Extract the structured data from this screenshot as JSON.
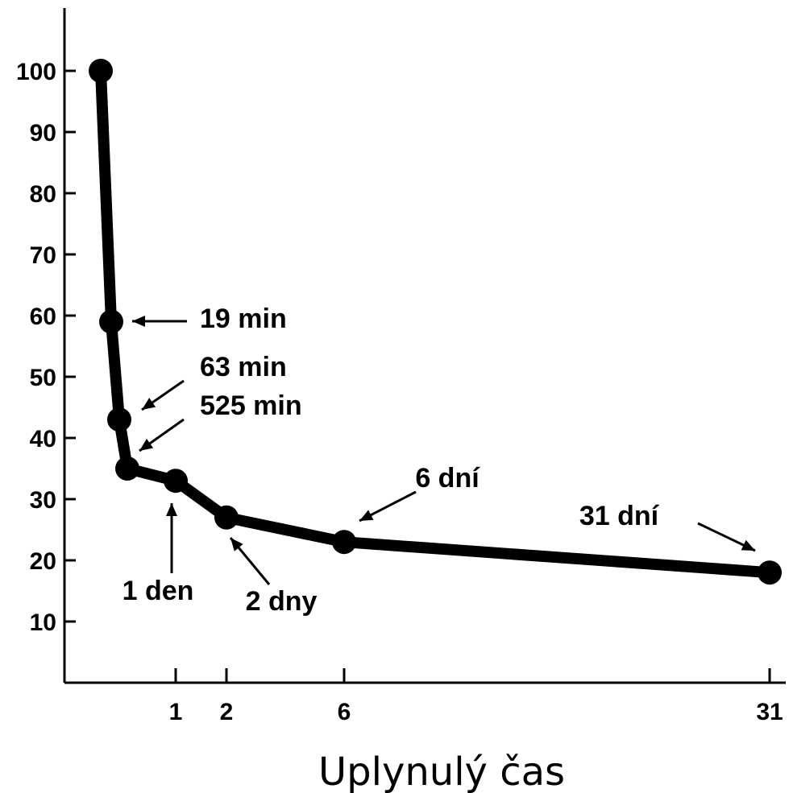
{
  "chart_data": {
    "type": "line",
    "title": "",
    "xlabel": "Uplynulý čas",
    "ylabel": "",
    "x_ticks": [
      {
        "value": 1,
        "label": "1"
      },
      {
        "value": 2,
        "label": "2"
      },
      {
        "value": 6,
        "label": "6"
      },
      {
        "value": 31,
        "label": "31"
      }
    ],
    "y_ticks": [
      10,
      20,
      30,
      40,
      50,
      60,
      70,
      80,
      90,
      100
    ],
    "points": [
      {
        "x": -0.42,
        "y": 100,
        "marker": true
      },
      {
        "x": -0.33,
        "y": 59,
        "marker": true
      },
      {
        "x": -0.27,
        "y": 43,
        "marker": true
      },
      {
        "x": -0.23,
        "y": 35,
        "marker": true
      },
      {
        "x": 1,
        "y": 33,
        "marker": true
      },
      {
        "x": 2,
        "y": 27,
        "marker": true
      },
      {
        "x": 6,
        "y": 23,
        "marker": true
      },
      {
        "x": 31,
        "y": 18,
        "marker": true
      }
    ],
    "annotations": [
      {
        "text": "19 min",
        "point_index": 1
      },
      {
        "text": "63 min",
        "point_index": 2
      },
      {
        "text": "525 min",
        "point_index": 3
      },
      {
        "text": "1 den",
        "point_index": 4
      },
      {
        "text": "2 dny",
        "point_index": 5
      },
      {
        "text": "6 dní",
        "point_index": 6
      },
      {
        "text": "31 dní",
        "point_index": 7
      }
    ],
    "grid": false,
    "legend": "none"
  }
}
